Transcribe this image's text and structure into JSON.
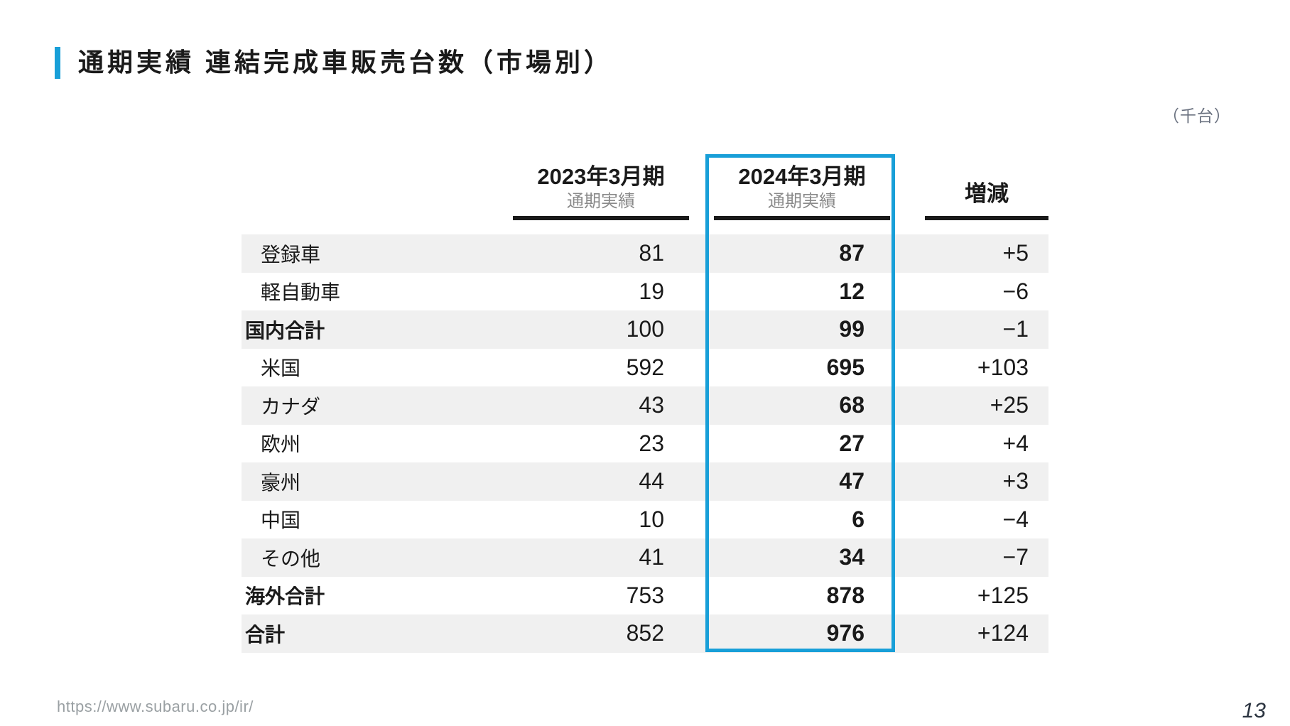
{
  "slide": {
    "title": "通期実績 連結完成車販売台数（市場別）",
    "unit_note": "（千台）",
    "footer_url": "https://www.subaru.co.jp/ir/",
    "page_number": "13"
  },
  "table": {
    "columns": [
      {
        "label": "2023年3月期",
        "sublabel": "通期実績",
        "highlighted": false
      },
      {
        "label": "2024年3月期",
        "sublabel": "通期実績",
        "highlighted": true
      },
      {
        "label": "増減",
        "sublabel": "",
        "highlighted": false
      }
    ],
    "rows": [
      {
        "label": "登録車",
        "indent": true,
        "bold": false,
        "v2023": "81",
        "v2024": "87",
        "diff": "+5"
      },
      {
        "label": "軽自動車",
        "indent": true,
        "bold": false,
        "v2023": "19",
        "v2024": "12",
        "diff": "−6"
      },
      {
        "label": "国内合計",
        "indent": false,
        "bold": true,
        "v2023": "100",
        "v2024": "99",
        "diff": "−1"
      },
      {
        "label": "米国",
        "indent": true,
        "bold": false,
        "v2023": "592",
        "v2024": "695",
        "diff": "+103"
      },
      {
        "label": "カナダ",
        "indent": true,
        "bold": false,
        "v2023": "43",
        "v2024": "68",
        "diff": "+25"
      },
      {
        "label": "欧州",
        "indent": true,
        "bold": false,
        "v2023": "23",
        "v2024": "27",
        "diff": "+4"
      },
      {
        "label": "豪州",
        "indent": true,
        "bold": false,
        "v2023": "44",
        "v2024": "47",
        "diff": "+3"
      },
      {
        "label": "中国",
        "indent": true,
        "bold": false,
        "v2023": "10",
        "v2024": "6",
        "diff": "−4"
      },
      {
        "label": "その他",
        "indent": true,
        "bold": false,
        "v2023": "41",
        "v2024": "34",
        "diff": "−7"
      },
      {
        "label": "海外合計",
        "indent": false,
        "bold": true,
        "v2023": "753",
        "v2024": "878",
        "diff": "+125"
      },
      {
        "label": "合計",
        "indent": false,
        "bold": true,
        "v2023": "852",
        "v2024": "976",
        "diff": "+124"
      }
    ]
  },
  "chart_data": {
    "type": "table",
    "title": "通期実績 連結完成車販売台数（市場別）",
    "unit": "千台",
    "columns": [
      "2023年3月期 通期実績",
      "2024年3月期 通期実績",
      "増減"
    ],
    "categories": [
      "登録車",
      "軽自動車",
      "国内合計",
      "米国",
      "カナダ",
      "欧州",
      "豪州",
      "中国",
      "その他",
      "海外合計",
      "合計"
    ],
    "series": [
      {
        "name": "2023年3月期 通期実績",
        "values": [
          81,
          19,
          100,
          592,
          43,
          23,
          44,
          10,
          41,
          753,
          852
        ]
      },
      {
        "name": "2024年3月期 通期実績",
        "values": [
          87,
          12,
          99,
          695,
          68,
          27,
          47,
          6,
          34,
          878,
          976
        ]
      },
      {
        "name": "増減",
        "values": [
          5,
          -6,
          -1,
          103,
          25,
          4,
          3,
          -4,
          -7,
          125,
          124
        ]
      }
    ]
  },
  "colors": {
    "accent_blue": "#189fd8",
    "row_stripe": "#f0f0f0",
    "text_primary": "#1a1a1a",
    "text_muted": "#8a8a8a"
  }
}
